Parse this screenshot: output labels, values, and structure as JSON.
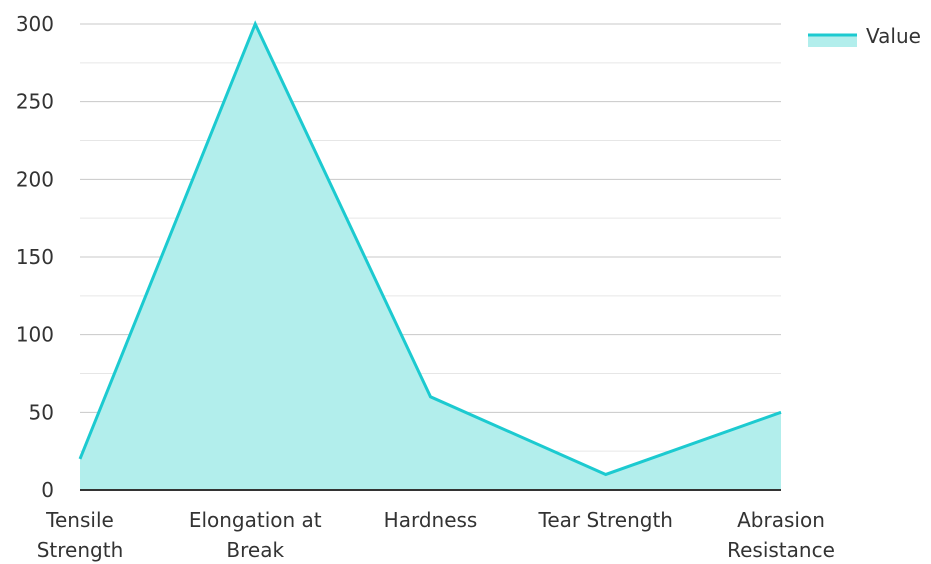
{
  "chart_data": {
    "type": "area",
    "categories": [
      "Tensile Strength",
      "Elongation at Break",
      "Hardness",
      "Tear Strength",
      "Abrasion Resistance"
    ],
    "series": [
      {
        "name": "Value",
        "values": [
          20,
          300,
          60,
          10,
          50
        ]
      }
    ],
    "y_ticks": [
      "0",
      "50",
      "100",
      "150",
      "200",
      "250",
      "300"
    ],
    "ylim": [
      0,
      300
    ],
    "legend_position": "top-right",
    "grid": true,
    "colors": {
      "line": "#1ccad0",
      "fill": "#b2eeec",
      "grid_major": "#c8c8c8",
      "grid_minor": "#e6e6e6",
      "axis": "#333333"
    }
  }
}
